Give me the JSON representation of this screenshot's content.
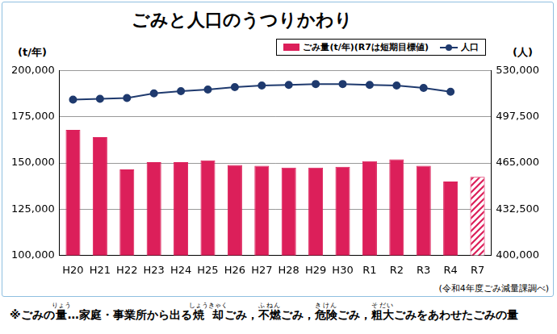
{
  "chart_data": {
    "type": "bar",
    "title": "ごみと人口のうつりかわり",
    "ylabel": "(t/年)",
    "y2label": "(人)",
    "categories": [
      "H20",
      "H21",
      "H22",
      "H23",
      "H24",
      "H25",
      "H26",
      "H27",
      "H28",
      "H29",
      "H30",
      "R1",
      "R2",
      "R3",
      "R4",
      "R7"
    ],
    "series": [
      {
        "name": "ごみ量(t/年)(R7は短期目標値)",
        "type": "bar",
        "color": "#dc1f5a",
        "values": [
          168000,
          164000,
          146500,
          150500,
          150500,
          151500,
          149000,
          148500,
          147500,
          147500,
          148000,
          151000,
          152000,
          148500,
          140000,
          142500
        ]
      },
      {
        "name": "人口",
        "type": "line",
        "axis": "y2",
        "color": "#1f3a6e",
        "marker": "circle",
        "values": [
          509700,
          510300,
          510800,
          514100,
          515700,
          516800,
          518500,
          519600,
          520100,
          520700,
          520700,
          520100,
          519600,
          517900,
          515200,
          null
        ]
      }
    ],
    "ylim": [
      100000,
      200000
    ],
    "yticks": [
      {
        "value": 100000,
        "label": "100,000"
      },
      {
        "value": 125000,
        "label": "125,000"
      },
      {
        "value": 150000,
        "label": "150,000"
      },
      {
        "value": 175000,
        "label": "175,000"
      },
      {
        "value": 200000,
        "label": "200,000"
      }
    ],
    "y2lim": [
      400000,
      530000
    ],
    "y2ticks": [
      {
        "value": 400000,
        "label": "400,000"
      },
      {
        "value": 432500,
        "label": "432,500"
      },
      {
        "value": 465000,
        "label": "465,000"
      },
      {
        "value": 497500,
        "label": "497,500"
      },
      {
        "value": 530000,
        "label": "530,000"
      }
    ],
    "grid": true,
    "legend": "top-right"
  },
  "source": "(令和4年度ごみ減量課調べ)",
  "note": [
    {
      "text": "※ごみの"
    },
    {
      "text": "量",
      "ruby": "りょう"
    },
    {
      "text": "…家庭・事業所から出る"
    },
    {
      "text": "焼却",
      "ruby": "しょうきゃく"
    },
    {
      "text": "ごみ，"
    },
    {
      "text": "不燃",
      "ruby": "ふねん"
    },
    {
      "text": "ごみ，"
    },
    {
      "text": "危険",
      "ruby": "きけん"
    },
    {
      "text": "ごみ，"
    },
    {
      "text": "粗大",
      "ruby": "そだい"
    },
    {
      "text": "ごみをあわせたごみの量"
    }
  ]
}
